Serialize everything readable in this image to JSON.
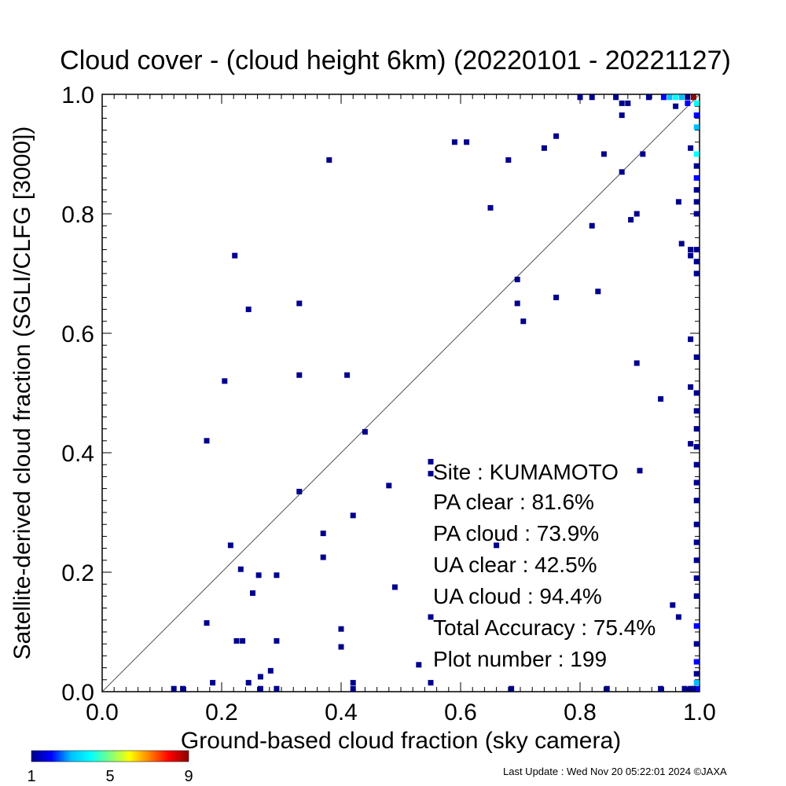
{
  "chart_data": {
    "type": "heatmap",
    "title": "Cloud cover - (cloud height 6km)  (20220101 - 20221127)",
    "xlabel": "Ground-based cloud fraction (sky camera)",
    "ylabel": "Satellite-derived cloud fraction (SGLI/CLFG [3000])",
    "xlim": [
      0,
      1
    ],
    "ylim": [
      0,
      1
    ],
    "x_ticks": [
      "0.0",
      "0.2",
      "0.4",
      "0.6",
      "0.8",
      "1.0"
    ],
    "y_ticks": [
      "0.0",
      "0.2",
      "0.4",
      "0.6",
      "0.8",
      "1.0"
    ],
    "diagonal_line": true,
    "grid": false,
    "stats": {
      "site": "Site : KUMAMOTO",
      "pa_clear": "PA clear :  81.6%",
      "pa_cloud": "PA cloud :  73.9%",
      "ua_clear": "UA clear :  42.5%",
      "ua_cloud": "UA cloud :  94.4%",
      "total_accuracy": "Total Accuracy :  75.4%",
      "plot_number": "Plot number :       199"
    },
    "colorbar": {
      "labels": [
        "1",
        "5",
        "9"
      ],
      "min": 1,
      "max": 9,
      "colors": [
        "#00008b",
        "#0000ff",
        "#00bfff",
        "#00ffff",
        "#7fff7f",
        "#ffff00",
        "#ff8000",
        "#ff0000",
        "#8b0000"
      ]
    },
    "points": [
      [
        0.12,
        0.005,
        1
      ],
      [
        0.135,
        0.005,
        1
      ],
      [
        0.175,
        0.42,
        1
      ],
      [
        0.175,
        0.115,
        1
      ],
      [
        0.185,
        0.015,
        1
      ],
      [
        0.205,
        0.52,
        1
      ],
      [
        0.215,
        0.245,
        1
      ],
      [
        0.222,
        0.73,
        1
      ],
      [
        0.225,
        0.085,
        1
      ],
      [
        0.232,
        0.205,
        1
      ],
      [
        0.235,
        0.085,
        1
      ],
      [
        0.245,
        0.64,
        1
      ],
      [
        0.245,
        0.015,
        1
      ],
      [
        0.252,
        0.165,
        1
      ],
      [
        0.262,
        0.195,
        1
      ],
      [
        0.265,
        0.025,
        1
      ],
      [
        0.265,
        0.005,
        1
      ],
      [
        0.282,
        0.035,
        1
      ],
      [
        0.292,
        0.195,
        1
      ],
      [
        0.292,
        0.085,
        1
      ],
      [
        0.292,
        0.005,
        1
      ],
      [
        0.33,
        0.65,
        1
      ],
      [
        0.33,
        0.53,
        1
      ],
      [
        0.33,
        0.335,
        1
      ],
      [
        0.37,
        0.265,
        1
      ],
      [
        0.37,
        0.225,
        1
      ],
      [
        0.38,
        0.89,
        1
      ],
      [
        0.4,
        0.105,
        1
      ],
      [
        0.4,
        0.075,
        1
      ],
      [
        0.41,
        0.53,
        1
      ],
      [
        0.42,
        0.295,
        1
      ],
      [
        0.42,
        0.015,
        1
      ],
      [
        0.42,
        0.005,
        1
      ],
      [
        0.44,
        0.435,
        1
      ],
      [
        0.48,
        0.345,
        1
      ],
      [
        0.49,
        0.175,
        1
      ],
      [
        0.53,
        0.045,
        1
      ],
      [
        0.55,
        0.385,
        1
      ],
      [
        0.55,
        0.365,
        1
      ],
      [
        0.55,
        0.125,
        1
      ],
      [
        0.55,
        0.015,
        1
      ],
      [
        0.59,
        0.92,
        1
      ],
      [
        0.61,
        0.92,
        1
      ],
      [
        0.65,
        0.81,
        1
      ],
      [
        0.66,
        0.245,
        1
      ],
      [
        0.68,
        0.89,
        1
      ],
      [
        0.685,
        0.005,
        1
      ],
      [
        0.695,
        0.69,
        1
      ],
      [
        0.695,
        0.65,
        1
      ],
      [
        0.705,
        0.62,
        1
      ],
      [
        0.74,
        0.91,
        1
      ],
      [
        0.76,
        0.93,
        1
      ],
      [
        0.76,
        0.66,
        1
      ],
      [
        0.8,
        0.995,
        1
      ],
      [
        0.82,
        0.995,
        1
      ],
      [
        0.82,
        0.78,
        1
      ],
      [
        0.83,
        0.67,
        1
      ],
      [
        0.84,
        0.9,
        1
      ],
      [
        0.845,
        0.005,
        1
      ],
      [
        0.86,
        0.995,
        1
      ],
      [
        0.87,
        0.985,
        1
      ],
      [
        0.87,
        0.965,
        1
      ],
      [
        0.87,
        0.87,
        1
      ],
      [
        0.88,
        0.985,
        1
      ],
      [
        0.885,
        0.79,
        1
      ],
      [
        0.895,
        0.8,
        1
      ],
      [
        0.895,
        0.55,
        1
      ],
      [
        0.9,
        0.37,
        1
      ],
      [
        0.905,
        0.9,
        1
      ],
      [
        0.915,
        0.995,
        1
      ],
      [
        0.935,
        0.49,
        1
      ],
      [
        0.935,
        0.005,
        1
      ],
      [
        0.955,
        0.145,
        1
      ],
      [
        0.96,
        0.98,
        1
      ],
      [
        0.965,
        0.82,
        1
      ],
      [
        0.965,
        0.125,
        1
      ],
      [
        0.97,
        0.75,
        1
      ],
      [
        0.975,
        0.005,
        1
      ],
      [
        0.98,
        0.995,
        1
      ],
      [
        0.985,
        0.91,
        1
      ],
      [
        0.985,
        0.59,
        1
      ],
      [
        0.985,
        0.51,
        1
      ],
      [
        0.985,
        0.415,
        1
      ],
      [
        0.985,
        0.005,
        1
      ],
      [
        0.94,
        0.995,
        2
      ],
      [
        0.95,
        0.995,
        3
      ],
      [
        0.96,
        0.995,
        4
      ],
      [
        0.97,
        0.995,
        3
      ],
      [
        0.98,
        0.985,
        2
      ],
      [
        0.99,
        0.995,
        9
      ],
      [
        0.995,
        0.985,
        4
      ],
      [
        0.995,
        0.965,
        2
      ],
      [
        0.995,
        0.945,
        3
      ],
      [
        0.995,
        0.9,
        4
      ],
      [
        0.995,
        0.88,
        1
      ],
      [
        0.995,
        0.86,
        2
      ],
      [
        0.995,
        0.84,
        1
      ],
      [
        0.995,
        0.82,
        1
      ],
      [
        0.995,
        0.8,
        1
      ],
      [
        0.995,
        0.74,
        1
      ],
      [
        0.995,
        0.72,
        1
      ],
      [
        0.995,
        0.7,
        1
      ],
      [
        0.995,
        0.56,
        1
      ],
      [
        0.995,
        0.5,
        1
      ],
      [
        0.995,
        0.47,
        1
      ],
      [
        0.995,
        0.44,
        1
      ],
      [
        0.995,
        0.41,
        1
      ],
      [
        0.995,
        0.38,
        1
      ],
      [
        0.995,
        0.35,
        1
      ],
      [
        0.995,
        0.32,
        1
      ],
      [
        0.995,
        0.28,
        1
      ],
      [
        0.995,
        0.25,
        1
      ],
      [
        0.995,
        0.22,
        1
      ],
      [
        0.995,
        0.19,
        1
      ],
      [
        0.995,
        0.16,
        1
      ],
      [
        0.995,
        0.11,
        2
      ],
      [
        0.995,
        0.08,
        1
      ],
      [
        0.995,
        0.05,
        2
      ],
      [
        0.995,
        0.03,
        1
      ],
      [
        0.995,
        0.015,
        3
      ],
      [
        0.995,
        0.005,
        2
      ],
      [
        0.99,
        0.005,
        1
      ],
      [
        0.985,
        0.73,
        1
      ],
      [
        0.985,
        0.74,
        1
      ]
    ]
  },
  "footer": {
    "last_update": "Last Update : Wed Nov 20 05:22:01 2024  ©JAXA"
  }
}
